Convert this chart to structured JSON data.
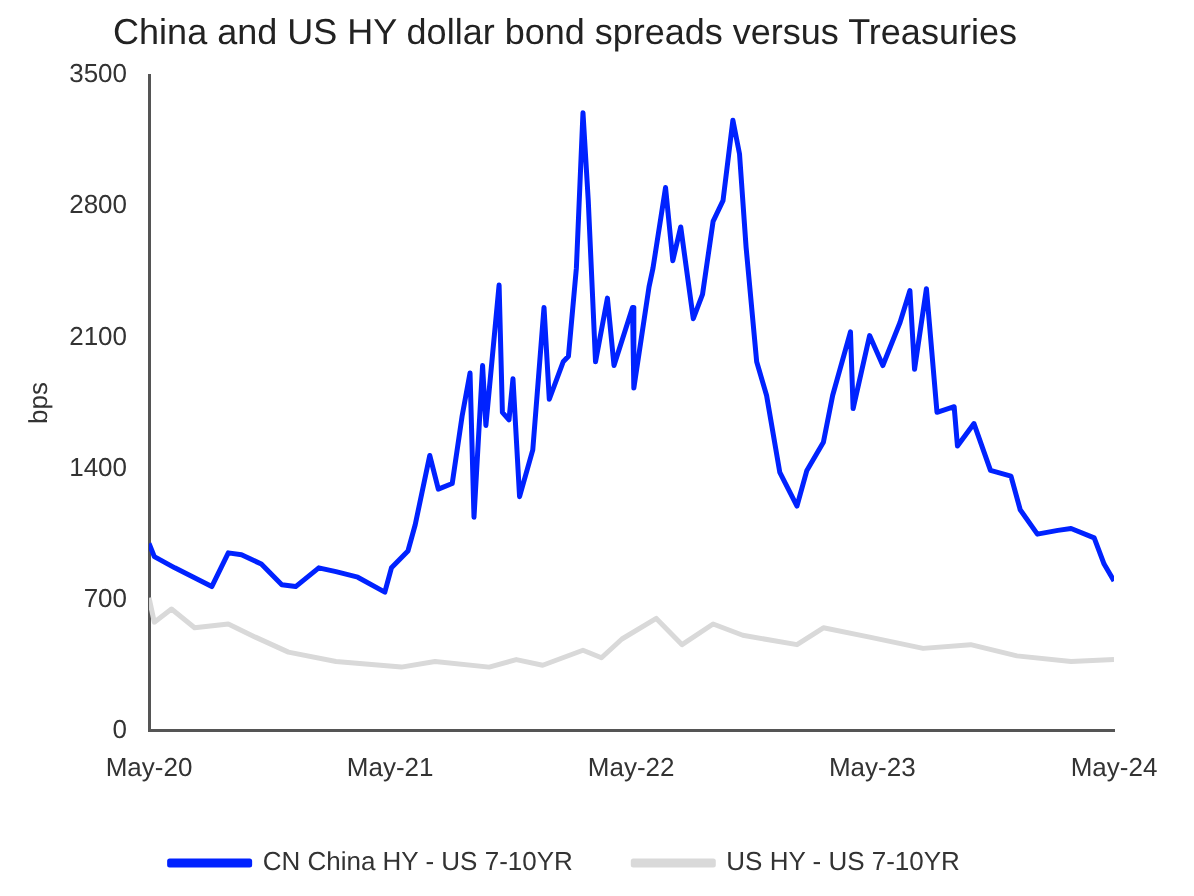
{
  "chart_data": {
    "type": "line",
    "title": "China and US HY dollar bond spreads versus Treasuries",
    "ylabel": "bps",
    "xlim": [
      "2020-05-01",
      "2024-05-01"
    ],
    "xticks": [
      {
        "value": "2020-05-01",
        "label": "May-20"
      },
      {
        "value": "2021-05-01",
        "label": "May-21"
      },
      {
        "value": "2022-05-01",
        "label": "May-22"
      },
      {
        "value": "2023-05-01",
        "label": "May-23"
      },
      {
        "value": "2024-05-01",
        "label": "May-24"
      }
    ],
    "ylim": [
      0,
      3500
    ],
    "yticks": [
      0,
      700,
      1400,
      2100,
      2800,
      3500
    ],
    "grid": false,
    "legend": "bottom",
    "marker": "none",
    "line_style": "solid",
    "series": [
      {
        "name": "CN China HY - US 7-10YR",
        "color": "#0022ff",
        "x": [
          "2020-05-01",
          "2020-05-09",
          "2020-06-09",
          "2020-08-04",
          "2020-08-29",
          "2020-09-18",
          "2020-10-18",
          "2020-11-18",
          "2020-12-09",
          "2021-01-13",
          "2021-02-08",
          "2021-03-13",
          "2021-04-23",
          "2021-05-03",
          "2021-05-28",
          "2021-06-08",
          "2021-06-30",
          "2021-07-13",
          "2021-08-03",
          "2021-08-18",
          "2021-08-30",
          "2021-09-05",
          "2021-09-18",
          "2021-09-23",
          "2021-10-13",
          "2021-10-18",
          "2021-10-28",
          "2021-11-03",
          "2021-11-13",
          "2021-12-03",
          "2021-12-20",
          "2021-12-28",
          "2022-01-18",
          "2022-01-26",
          "2022-02-07",
          "2022-02-17",
          "2022-02-25",
          "2022-03-08",
          "2022-03-26",
          "2022-04-05",
          "2022-05-03",
          "2022-05-05",
          "2022-05-28",
          "2022-06-03",
          "2022-06-22",
          "2022-07-03",
          "2022-07-15",
          "2022-08-03",
          "2022-08-17",
          "2022-09-02",
          "2022-09-17",
          "2022-10-02",
          "2022-10-12",
          "2022-10-22",
          "2022-11-07",
          "2022-11-22",
          "2022-12-12",
          "2023-01-07",
          "2023-01-22",
          "2023-02-16",
          "2023-03-02",
          "2023-03-29",
          "2023-04-02",
          "2023-04-27",
          "2023-05-17",
          "2023-06-12",
          "2023-06-27",
          "2023-07-04",
          "2023-07-22",
          "2023-08-07",
          "2023-09-02",
          "2023-09-07",
          "2023-10-02",
          "2023-10-27",
          "2023-11-27",
          "2023-12-11",
          "2024-01-06",
          "2024-02-06",
          "2024-02-26",
          "2024-04-01",
          "2024-04-16",
          "2024-05-01"
        ],
        "values": [
          1000,
          930,
          870,
          770,
          950,
          940,
          890,
          780,
          770,
          870,
          850,
          820,
          740,
          870,
          960,
          1100,
          1470,
          1290,
          1320,
          1680,
          1910,
          1140,
          1950,
          1630,
          2380,
          1700,
          1660,
          1880,
          1250,
          1500,
          2260,
          1770,
          1970,
          2000,
          2470,
          3300,
          2830,
          1970,
          2310,
          1950,
          2260,
          1830,
          2370,
          2470,
          2900,
          2510,
          2690,
          2200,
          2330,
          2720,
          2830,
          3260,
          3080,
          2580,
          1970,
          1790,
          1380,
          1200,
          1390,
          1540,
          1790,
          2130,
          1720,
          2110,
          1950,
          2180,
          2350,
          1930,
          2360,
          1700,
          1730,
          1520,
          1640,
          1390,
          1360,
          1180,
          1050,
          1070,
          1080,
          1030,
          890,
          800
        ]
      },
      {
        "name": "US HY - US 7-10YR",
        "color": "#d9d9d9",
        "x": [
          "2020-05-01",
          "2020-05-09",
          "2020-06-04",
          "2020-07-09",
          "2020-08-29",
          "2020-10-09",
          "2020-11-28",
          "2021-02-08",
          "2021-05-18",
          "2021-07-08",
          "2021-09-28",
          "2021-11-08",
          "2021-12-18",
          "2022-02-17",
          "2022-03-17",
          "2022-04-17",
          "2022-06-08",
          "2022-07-17",
          "2022-09-02",
          "2022-10-17",
          "2023-01-07",
          "2023-02-16",
          "2023-04-27",
          "2023-07-17",
          "2023-09-27",
          "2023-12-06",
          "2024-02-26",
          "2024-05-01"
        ],
        "values": [
          710,
          580,
          650,
          550,
          570,
          500,
          420,
          370,
          340,
          370,
          340,
          380,
          350,
          430,
          390,
          490,
          600,
          460,
          570,
          510,
          460,
          550,
          500,
          440,
          460,
          400,
          370,
          380
        ]
      }
    ]
  }
}
